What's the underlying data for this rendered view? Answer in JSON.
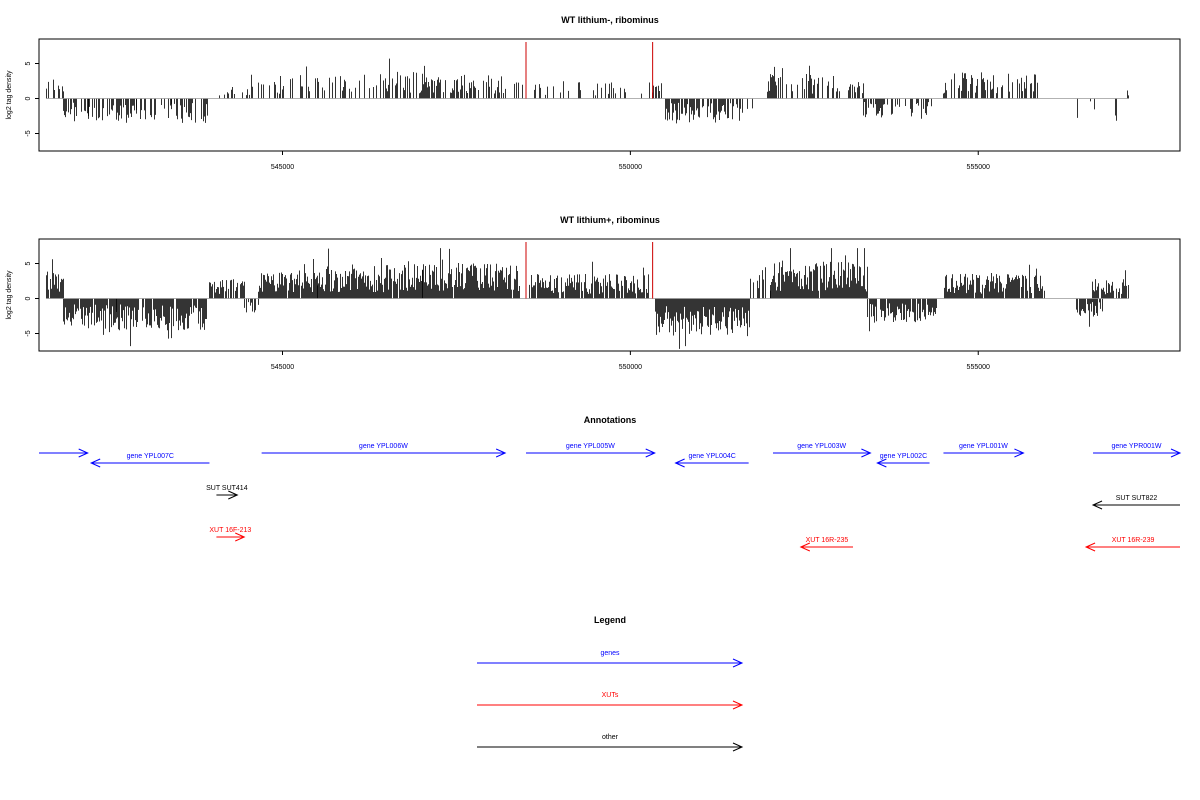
{
  "colors": {
    "gene": "#0000ff",
    "xut": "#ff0000",
    "other": "#000000",
    "marker": "#cc0000",
    "bar": "#000000",
    "baseline": "#999999"
  },
  "x_ticks": [
    "545000",
    "550000",
    "555000"
  ],
  "chart_data": [
    {
      "type": "bar",
      "title": "WT lithium-, ribominus",
      "ylabel": "log2 tag density",
      "xlim": [
        541500,
        557900
      ],
      "ylim": [
        -7.5,
        8.5
      ],
      "x_ticks": [
        545000,
        550000,
        555000
      ],
      "y_ticks": [
        -5,
        0,
        5
      ],
      "markers": [
        548500,
        550320
      ],
      "segments": [
        {
          "from": 541600,
          "to": 541850,
          "level": 2.4,
          "density": 0.7
        },
        {
          "from": 541850,
          "to": 542200,
          "level": -2.2,
          "density": 0.5
        },
        {
          "from": 542200,
          "to": 542900,
          "level": -2.6,
          "density": 0.6
        },
        {
          "from": 542900,
          "to": 543400,
          "level": -2.4,
          "density": 0.5
        },
        {
          "from": 543400,
          "to": 543950,
          "level": -2.6,
          "density": 0.6
        },
        {
          "from": 544050,
          "to": 544550,
          "level": 1.6,
          "density": 0.2
        },
        {
          "from": 544550,
          "to": 546500,
          "level": 2.6,
          "density": 0.4
        },
        {
          "from": 546500,
          "to": 547500,
          "level": 3.0,
          "density": 0.6
        },
        {
          "from": 547500,
          "to": 548500,
          "level": 2.6,
          "density": 0.5
        },
        {
          "from": 548600,
          "to": 550200,
          "level": 1.8,
          "density": 0.25
        },
        {
          "from": 550250,
          "to": 550450,
          "level": 2.5,
          "density": 0.6
        },
        {
          "from": 550500,
          "to": 551600,
          "level": -2.4,
          "density": 0.75
        },
        {
          "from": 551650,
          "to": 551750,
          "level": -1.5,
          "density": 0.3
        },
        {
          "from": 551950,
          "to": 553000,
          "level": 2.6,
          "density": 0.55
        },
        {
          "from": 553100,
          "to": 553350,
          "level": 1.8,
          "density": 0.4
        },
        {
          "from": 553350,
          "to": 554350,
          "level": -2.0,
          "density": 0.55
        },
        {
          "from": 554500,
          "to": 555850,
          "level": 2.8,
          "density": 0.55
        },
        {
          "from": 556400,
          "to": 556450,
          "level": -2.5,
          "density": 0.4
        },
        {
          "from": 556550,
          "to": 556700,
          "level": -1.5,
          "density": 0.2
        },
        {
          "from": 556950,
          "to": 557000,
          "level": -3.0,
          "density": 0.4
        },
        {
          "from": 557070,
          "to": 557150,
          "level": 1.2,
          "density": 0.3
        }
      ]
    },
    {
      "type": "bar",
      "title": "WT lithium+, ribominus",
      "ylabel": "log2 tag density",
      "xlim": [
        541500,
        557900
      ],
      "ylim": [
        -7.5,
        8.5
      ],
      "x_ticks": [
        545000,
        550000,
        555000
      ],
      "y_ticks": [
        -5,
        0,
        5
      ],
      "markers": [
        548500,
        550320
      ],
      "segments": [
        {
          "from": 541600,
          "to": 541850,
          "level": 2.9,
          "density": 0.9
        },
        {
          "from": 541850,
          "to": 542600,
          "level": -3.2,
          "density": 0.9
        },
        {
          "from": 542600,
          "to": 543900,
          "level": -3.4,
          "density": 0.9
        },
        {
          "from": 543950,
          "to": 544450,
          "level": 2.0,
          "density": 0.8
        },
        {
          "from": 544450,
          "to": 544650,
          "level": -1.5,
          "density": 0.5
        },
        {
          "from": 544650,
          "to": 545500,
          "level": 2.8,
          "density": 0.95
        },
        {
          "from": 545500,
          "to": 547000,
          "level": 3.6,
          "density": 0.98
        },
        {
          "from": 547000,
          "to": 548400,
          "level": 3.8,
          "density": 0.98
        },
        {
          "from": 548550,
          "to": 550250,
          "level": 2.6,
          "density": 0.9
        },
        {
          "from": 550350,
          "to": 551700,
          "level": -4.0,
          "density": 0.98
        },
        {
          "from": 551700,
          "to": 552000,
          "level": 2.5,
          "density": 0.6
        },
        {
          "from": 552000,
          "to": 553400,
          "level": 4.0,
          "density": 0.98
        },
        {
          "from": 553400,
          "to": 554400,
          "level": -2.6,
          "density": 0.85
        },
        {
          "from": 554500,
          "to": 555950,
          "level": 2.7,
          "density": 0.9
        },
        {
          "from": 556400,
          "to": 556800,
          "level": -2.0,
          "density": 0.8
        },
        {
          "from": 556600,
          "to": 557150,
          "level": 2.1,
          "density": 0.8
        }
      ]
    }
  ],
  "annotations": {
    "title": "Annotations",
    "features": [
      {
        "label": "",
        "kind": "gene",
        "from": 541500,
        "to": 542200,
        "strand": "+",
        "row": 0
      },
      {
        "label": "gene YPL007C",
        "kind": "gene",
        "from": 542250,
        "to": 543950,
        "strand": "-",
        "row": 1
      },
      {
        "label": "gene YPL006W",
        "kind": "gene",
        "from": 544700,
        "to": 548200,
        "strand": "+",
        "row": 0
      },
      {
        "label": "gene YPL005W",
        "kind": "gene",
        "from": 548500,
        "to": 550350,
        "strand": "+",
        "row": 0
      },
      {
        "label": "gene YPL004C",
        "kind": "gene",
        "from": 550650,
        "to": 551700,
        "strand": "-",
        "row": 1
      },
      {
        "label": "gene YPL003W",
        "kind": "gene",
        "from": 552050,
        "to": 553450,
        "strand": "+",
        "row": 0
      },
      {
        "label": "gene YPL002C",
        "kind": "gene",
        "from": 553550,
        "to": 554300,
        "strand": "-",
        "row": 1
      },
      {
        "label": "gene YPL001W",
        "kind": "gene",
        "from": 554500,
        "to": 555650,
        "strand": "+",
        "row": 0
      },
      {
        "label": "gene YPR001W",
        "kind": "gene",
        "from": 556650,
        "to": 557900,
        "strand": "+",
        "row": 0
      },
      {
        "label": "SUT SUT414",
        "kind": "other",
        "from": 544050,
        "to": 544350,
        "strand": "+",
        "row": 2
      },
      {
        "label": "SUT SUT822",
        "kind": "other",
        "from": 556650,
        "to": 557900,
        "strand": "-",
        "row": 3
      },
      {
        "label": "XUT 16F-213",
        "kind": "xut",
        "from": 544050,
        "to": 544450,
        "strand": "+",
        "row": 4
      },
      {
        "label": "XUT 16R-235",
        "kind": "xut",
        "from": 552450,
        "to": 553200,
        "strand": "-",
        "row": 5
      },
      {
        "label": "XUT 16R-239",
        "kind": "xut",
        "from": 556550,
        "to": 557900,
        "strand": "-",
        "row": 5
      }
    ]
  },
  "legend": {
    "title": "Legend",
    "items": [
      {
        "label": "genes",
        "kind": "gene"
      },
      {
        "label": "XUTs",
        "kind": "xut"
      },
      {
        "label": "other",
        "kind": "other"
      }
    ]
  }
}
